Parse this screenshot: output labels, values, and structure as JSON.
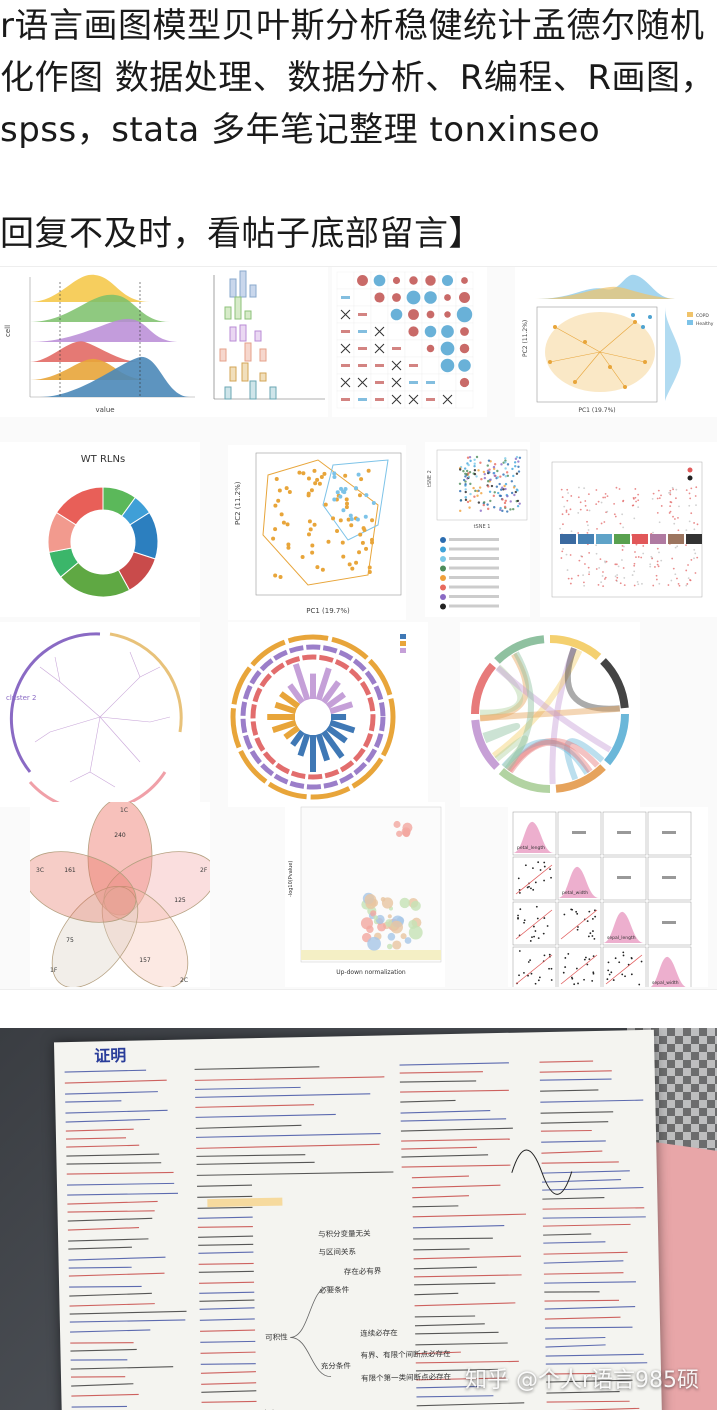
{
  "post": {
    "line1": "r语言画图模型贝叶斯分析稳健统计孟德尔随机",
    "line2": "化作图 数据处理、数据分析、R编程、R画图，",
    "line3": "spss，stata 多年笔记整理 tonxinseo",
    "line4": "回复不及时，看帖子底部留言】"
  },
  "collage": {
    "donut_title": "WT RLNs",
    "scatter_xlabel": "PC1 (19.7%)",
    "scatter_ylabel": "PC2 (11.2%)",
    "small_xlabel": "PC1 (19.7%)",
    "small_ylabel": "PC2 (11.2%)",
    "legend_copd": "COPD",
    "legend_healthy": "Healthy",
    "ridge_xlabel": "value",
    "ridge_ylabel": "cell",
    "volcano_xlabel": "Up-down normalization",
    "volcano_ylabel": "-log10(Pvalue)",
    "tsne_x": "tSNE 1",
    "tsne_y": "tSNE 2",
    "venn_labels": [
      "1C",
      "2F",
      "2C",
      "1F",
      "3C"
    ],
    "venn_nums": [
      "240",
      "161",
      "125",
      "157",
      "75"
    ],
    "pairs_labels": [
      "petal_length",
      "petal_width",
      "sepal_length",
      "sepal_width"
    ],
    "cluster_label": "cluster 2",
    "colors": {
      "orange": "#e8a53a",
      "blue": "#4fa3d1",
      "green": "#5bb85a",
      "red": "#e0625c",
      "purple": "#8a6ac4",
      "pink": "#f0a0a8"
    }
  },
  "photo": {
    "title_mark": "证明",
    "watermark": "知乎 @个人r语言985硕",
    "paper_notes": [
      "可积性",
      "必要条件",
      "充分条件",
      "大小",
      "存在必有界",
      "与积分变量无关",
      "与区间关系",
      "连续必存在",
      "有界、有限个间断点必存在",
      "有限个第一类间断点必存在"
    ]
  }
}
